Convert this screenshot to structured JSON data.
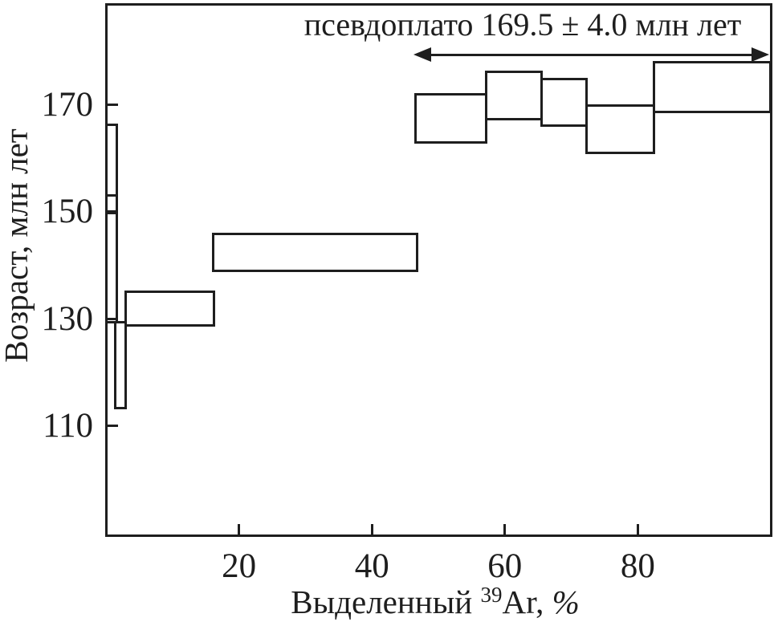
{
  "annotation": {
    "text": "псевдоплато 169.5 ± 4.0 млн лет"
  },
  "y_axis": {
    "title": "Возраст, млн лет",
    "ticks": [
      170,
      150,
      130,
      110
    ]
  },
  "x_axis": {
    "title_prefix": "Выделенный ",
    "title_sup": "39",
    "title_isotope": "Ar, ",
    "title_percent": "%",
    "ticks": [
      20,
      40,
      60,
      80
    ]
  },
  "colors": {
    "ink": "#1e1e1e",
    "background": "#ffffff"
  },
  "chart_data": {
    "type": "bar",
    "subtype": "argon-argon-step-heating-age-spectrum",
    "title": "псевдоплато 169.5 ± 4.0 млн лет",
    "xlabel": "Выделенный ³⁹Ar, %",
    "ylabel": "Возраст, млн лет",
    "xlim": [
      0,
      100
    ],
    "ylim": [
      89,
      189
    ],
    "x_ticks": [
      20,
      40,
      60,
      80
    ],
    "y_ticks": [
      110,
      130,
      150,
      170
    ],
    "grid": false,
    "legend": false,
    "plateau": {
      "label": "псевдоплато 169.5 ± 4.0 млн лет",
      "age_ma": 169.5,
      "error_ma": 4.0,
      "pct_from": 46.5,
      "pct_to": 99.5
    },
    "steps": [
      {
        "pct_from": 0,
        "pct_to": 1.6,
        "age_min": 153.1,
        "age_max": 166.3
      },
      {
        "pct_from": 0,
        "pct_to": 1.6,
        "age_min": 149.7,
        "age_max": 153.1
      },
      {
        "pct_from": 0,
        "pct_to": 1.6,
        "age_min": 129.3,
        "age_max": 149.7
      },
      {
        "pct_from": 1.4,
        "pct_to": 3.0,
        "age_min": 113.4,
        "age_max": 129.3
      },
      {
        "pct_from": 3.0,
        "pct_to": 16.3,
        "age_min": 128.8,
        "age_max": 135.0
      },
      {
        "pct_from": 16.1,
        "pct_to": 46.8,
        "age_min": 138.9,
        "age_max": 145.8
      },
      {
        "pct_from": 46.6,
        "pct_to": 57.2,
        "age_min": 163.0,
        "age_max": 171.9
      },
      {
        "pct_from": 57.2,
        "pct_to": 65.5,
        "age_min": 167.3,
        "age_max": 176.1
      },
      {
        "pct_from": 65.5,
        "pct_to": 72.3,
        "age_min": 166.1,
        "age_max": 174.8
      },
      {
        "pct_from": 72.3,
        "pct_to": 82.4,
        "age_min": 161.0,
        "age_max": 169.8
      },
      {
        "pct_from": 82.4,
        "pct_to": 100,
        "age_min": 168.6,
        "age_max": 177.9
      }
    ]
  }
}
